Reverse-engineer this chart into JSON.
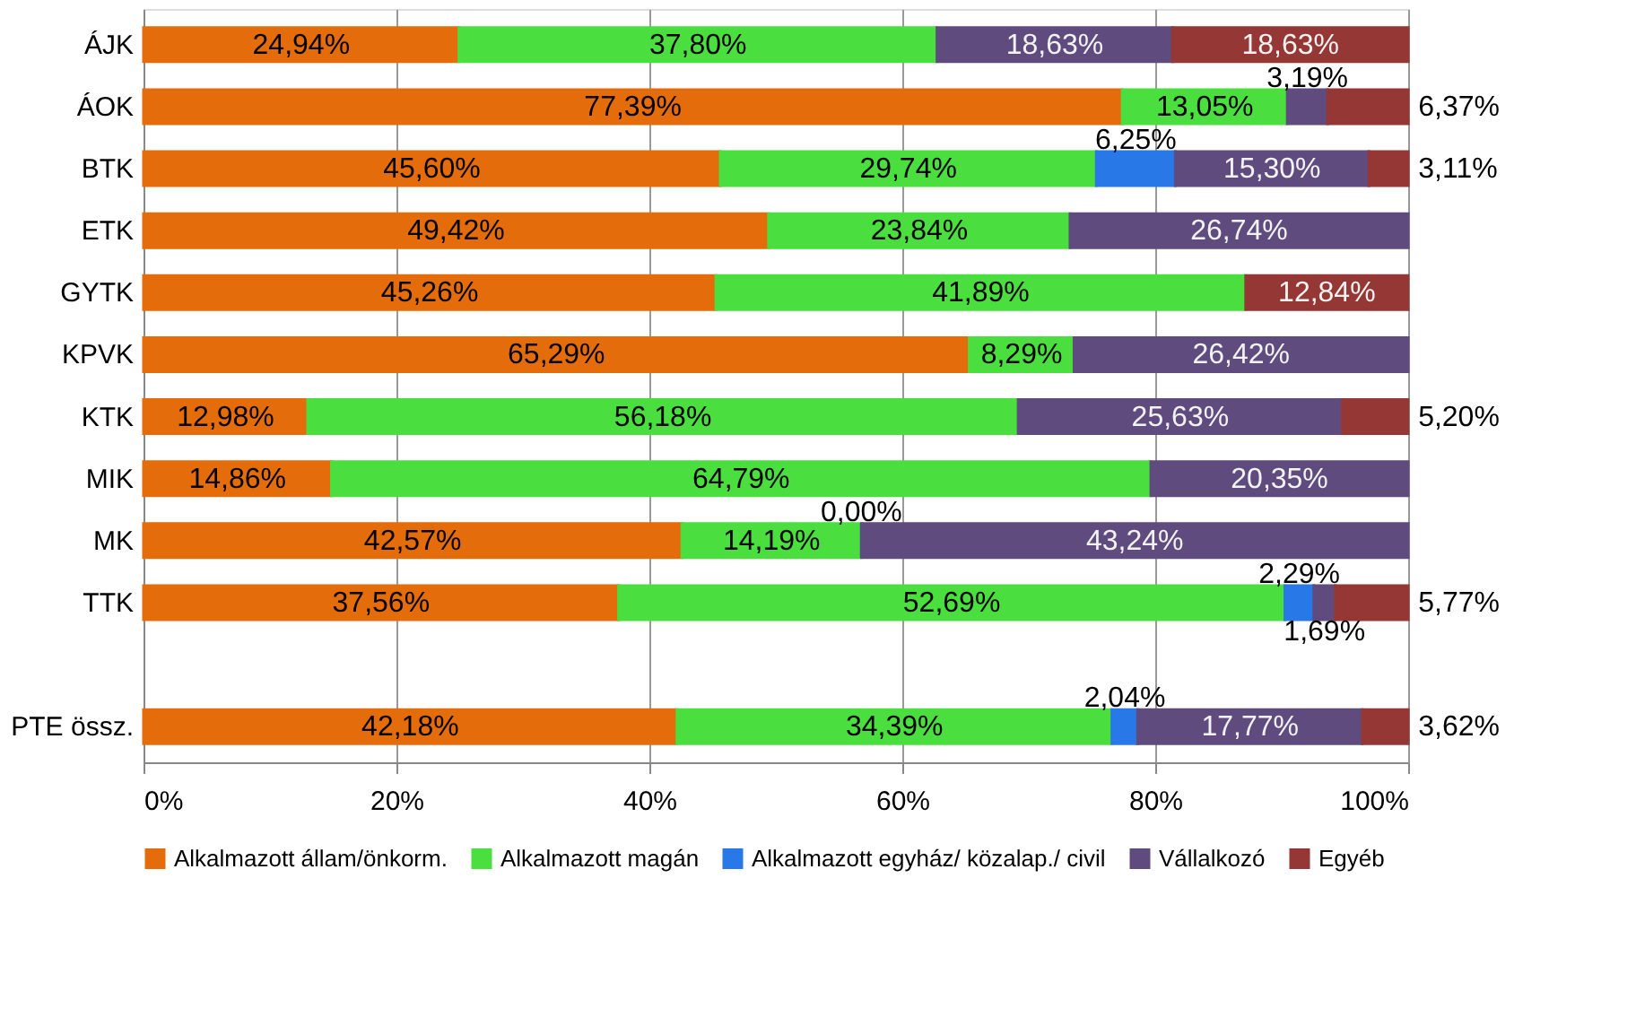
{
  "chart_data": {
    "type": "bar",
    "orientation": "horizontal",
    "stacked": true,
    "categories": [
      "ÁJK",
      "ÁOK",
      "BTK",
      "ETK",
      "GYTK",
      "KPVK",
      "KTK",
      "MIK",
      "MK",
      "TTK",
      null,
      "PTE össz."
    ],
    "series": [
      {
        "name": "Alkalmazott állam/önkorm.",
        "color": "#e46c0a",
        "values": [
          24.94,
          77.39,
          45.6,
          49.42,
          45.26,
          65.29,
          12.98,
          14.86,
          42.57,
          37.56,
          null,
          42.18
        ],
        "value_labels": [
          "24,94%",
          "77,39%",
          "45,60%",
          "49,42%",
          "45,26%",
          "65,29%",
          "12,98%",
          "14,86%",
          "42,57%",
          "37,56%",
          null,
          "42,18%"
        ]
      },
      {
        "name": "Alkalmazott magán",
        "color": "#4ade3f",
        "values": [
          37.8,
          13.05,
          29.74,
          23.84,
          41.89,
          8.29,
          56.18,
          64.79,
          14.19,
          52.69,
          null,
          34.39
        ],
        "value_labels": [
          "37,80%",
          "13,05%",
          "29,74%",
          "23,84%",
          "41,89%",
          "8,29%",
          "56,18%",
          "64,79%",
          "14,19%",
          "52,69%",
          null,
          "34,39%"
        ]
      },
      {
        "name": "Alkalmazott egyház/ közalap./ civil",
        "color": "#2878e8",
        "values": [
          null,
          null,
          6.25,
          null,
          null,
          null,
          null,
          null,
          0.0,
          2.29,
          null,
          2.04
        ],
        "value_labels": [
          null,
          null,
          "6,25%",
          null,
          null,
          null,
          null,
          null,
          "0,00%",
          "2,29%",
          null,
          "2,04%"
        ]
      },
      {
        "name": "Vállalkozó",
        "color": "#5f4b7e",
        "values": [
          18.63,
          3.19,
          15.3,
          26.74,
          null,
          26.42,
          25.63,
          20.35,
          43.24,
          1.69,
          null,
          17.77
        ],
        "value_labels": [
          "18,63%",
          "3,19%",
          "15,30%",
          "26,74%",
          null,
          "26,42%",
          "25,63%",
          "20,35%",
          "43,24%",
          "1,69%",
          null,
          "17,77%"
        ]
      },
      {
        "name": "Egyéb",
        "color": "#953735",
        "values": [
          18.63,
          6.37,
          3.11,
          null,
          12.84,
          null,
          5.2,
          null,
          null,
          5.77,
          null,
          3.62
        ],
        "value_labels": [
          "18,63%",
          "6,37%",
          "3,11%",
          null,
          "12,84%",
          null,
          "5,20%",
          null,
          null,
          "5,77%",
          null,
          "3,62%"
        ]
      }
    ],
    "xlim": [
      0,
      100
    ],
    "xticks": [
      {
        "value": 0,
        "label": "0%"
      },
      {
        "value": 20,
        "label": "20%"
      },
      {
        "value": 40,
        "label": "40%"
      },
      {
        "value": 60,
        "label": "60%"
      },
      {
        "value": 80,
        "label": "80%"
      },
      {
        "value": 100,
        "label": "100%"
      }
    ],
    "grid": "x",
    "legend": "bottom"
  }
}
